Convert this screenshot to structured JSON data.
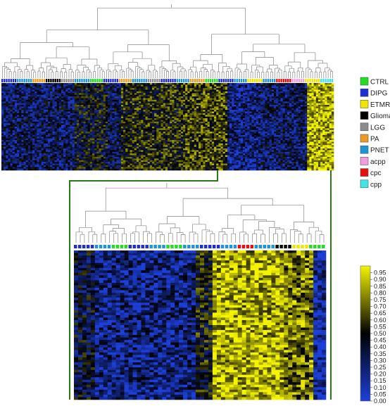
{
  "chart_data": [
    {
      "type": "heatmap",
      "title": "",
      "panel": "overview",
      "dendrogram": "top",
      "sample_groups_order": [
        "DIPG",
        "PNET",
        "PA",
        "Glioma",
        "LGG",
        "PNET",
        "CTRL",
        "DIPG",
        "PA",
        "PNET",
        "LGG",
        "DIPG",
        "PNET",
        "PA",
        "CTRL",
        "DIPG",
        "PNET",
        "ETMR",
        "PNET",
        "cpc",
        "acpp",
        "ETMR",
        "cpp"
      ],
      "value_range": [
        0,
        1
      ],
      "grid": false
    },
    {
      "type": "heatmap",
      "title": "",
      "panel": "zoom",
      "dendrogram": "top",
      "sample_groups_order": [
        "DIPG",
        "PNET",
        "CTRL",
        "DIPG",
        "PNET",
        "CTRL",
        "PNET",
        "DIPG",
        "PNET",
        "cpc",
        "PNET",
        "Glioma",
        "ETMR",
        "CTRL"
      ],
      "value_range": [
        0,
        1
      ],
      "grid": false
    }
  ],
  "legend": {
    "position": "right",
    "items": [
      {
        "label": "CTRL",
        "color": "#22dd22"
      },
      {
        "label": "DIPG",
        "color": "#1f2fd6"
      },
      {
        "label": "ETMR",
        "color": "#f2e600"
      },
      {
        "label": "Glioma",
        "color": "#000000"
      },
      {
        "label": "LGG",
        "color": "#8c8c8c"
      },
      {
        "label": "PA",
        "color": "#ee9a22"
      },
      {
        "label": "PNET",
        "color": "#1e95d4"
      },
      {
        "label": "acpp",
        "color": "#f59ce0"
      },
      {
        "label": "cpc",
        "color": "#e80f0f"
      },
      {
        "label": "cpp",
        "color": "#3ee6e6"
      }
    ]
  },
  "colorbar": {
    "ticks": [
      "0.95",
      "0.90",
      "0.85",
      "0.80",
      "0.75",
      "0.70",
      "0.65",
      "0.60",
      "0.55",
      "0.50",
      "0.45",
      "0.40",
      "0.35",
      "0.30",
      "0.25",
      "0.20",
      "0.15",
      "0.10",
      "0.05",
      "0.00"
    ],
    "stops": [
      {
        "value": 0.0,
        "color": "#1d3fd9"
      },
      {
        "value": 0.5,
        "color": "#000000"
      },
      {
        "value": 1.0,
        "color": "#f4f400"
      }
    ]
  },
  "colors": {
    "zoom_frame": "#2a7a1a",
    "dendrogram": "#888888",
    "heat_low": "#1d3fd9",
    "heat_mid": "#000000",
    "heat_high": "#f4f400"
  }
}
